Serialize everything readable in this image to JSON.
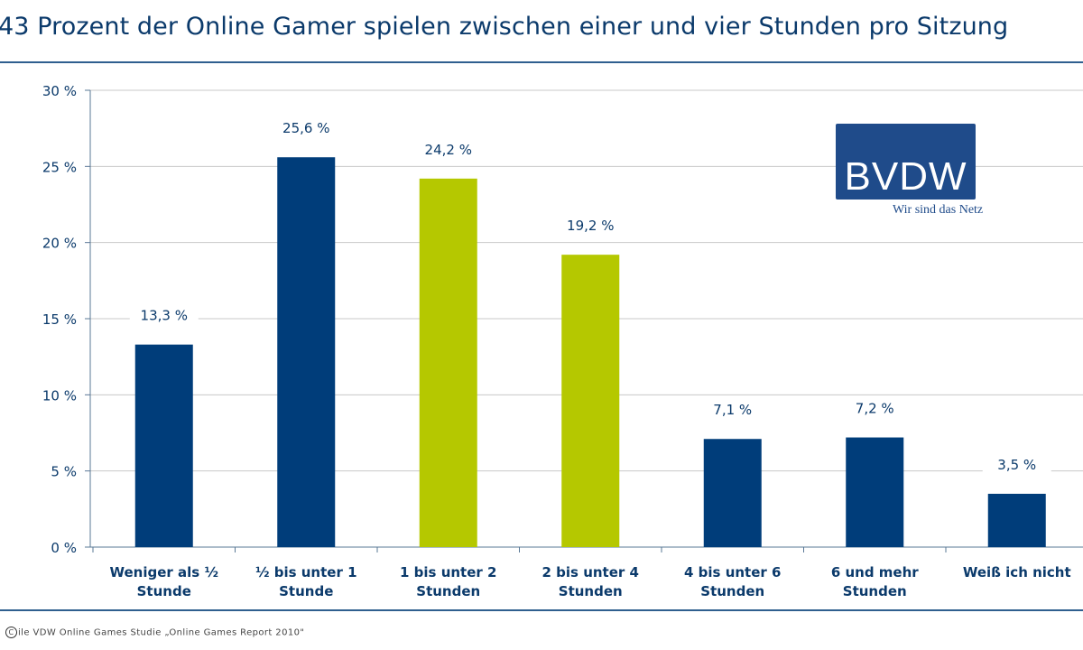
{
  "chart_data": {
    "type": "bar",
    "title": "43 Prozent der Online Gamer spielen zwischen einer und vier Stunden pro Sitzung",
    "categories": [
      [
        "Weniger als ½",
        "Stunde"
      ],
      [
        "½ bis unter 1",
        "Stunde"
      ],
      [
        "1 bis unter 2",
        "Stunden"
      ],
      [
        "2 bis unter 4",
        "Stunden"
      ],
      [
        "4 bis unter 6",
        "Stunden"
      ],
      [
        "6 und mehr",
        "Stunden"
      ],
      [
        "Weiß ich nicht"
      ]
    ],
    "values": [
      13.3,
      25.6,
      24.2,
      19.2,
      7.1,
      7.2,
      3.5
    ],
    "value_labels": [
      "13,3 %",
      "25,6 %",
      "24,2 %",
      "19,2 %",
      "7,1 %",
      "7,2 %",
      "3,5 %"
    ],
    "bar_colors": [
      "#003d7a",
      "#003d7a",
      "#b5c800",
      "#b5c800",
      "#003d7a",
      "#003d7a",
      "#003d7a"
    ],
    "ylim": [
      0,
      30
    ],
    "yticks": [
      0,
      5,
      10,
      15,
      20,
      25,
      30
    ],
    "ytick_labels": [
      "0 %",
      "5 %",
      "10 %",
      "15 %",
      "20 %",
      "25 %",
      "30 %"
    ],
    "grid": true,
    "legend": "none"
  },
  "logo": {
    "mark": "BVDW",
    "tagline": "Wir sind das Netz"
  },
  "source": "ile VDW Online Games Studie „Online Games Report 2010\"",
  "colors": {
    "axis": "#5a7896",
    "grid": "#c8c8c8",
    "text": "#0b3a6b",
    "rule": "#2f5f8f"
  }
}
